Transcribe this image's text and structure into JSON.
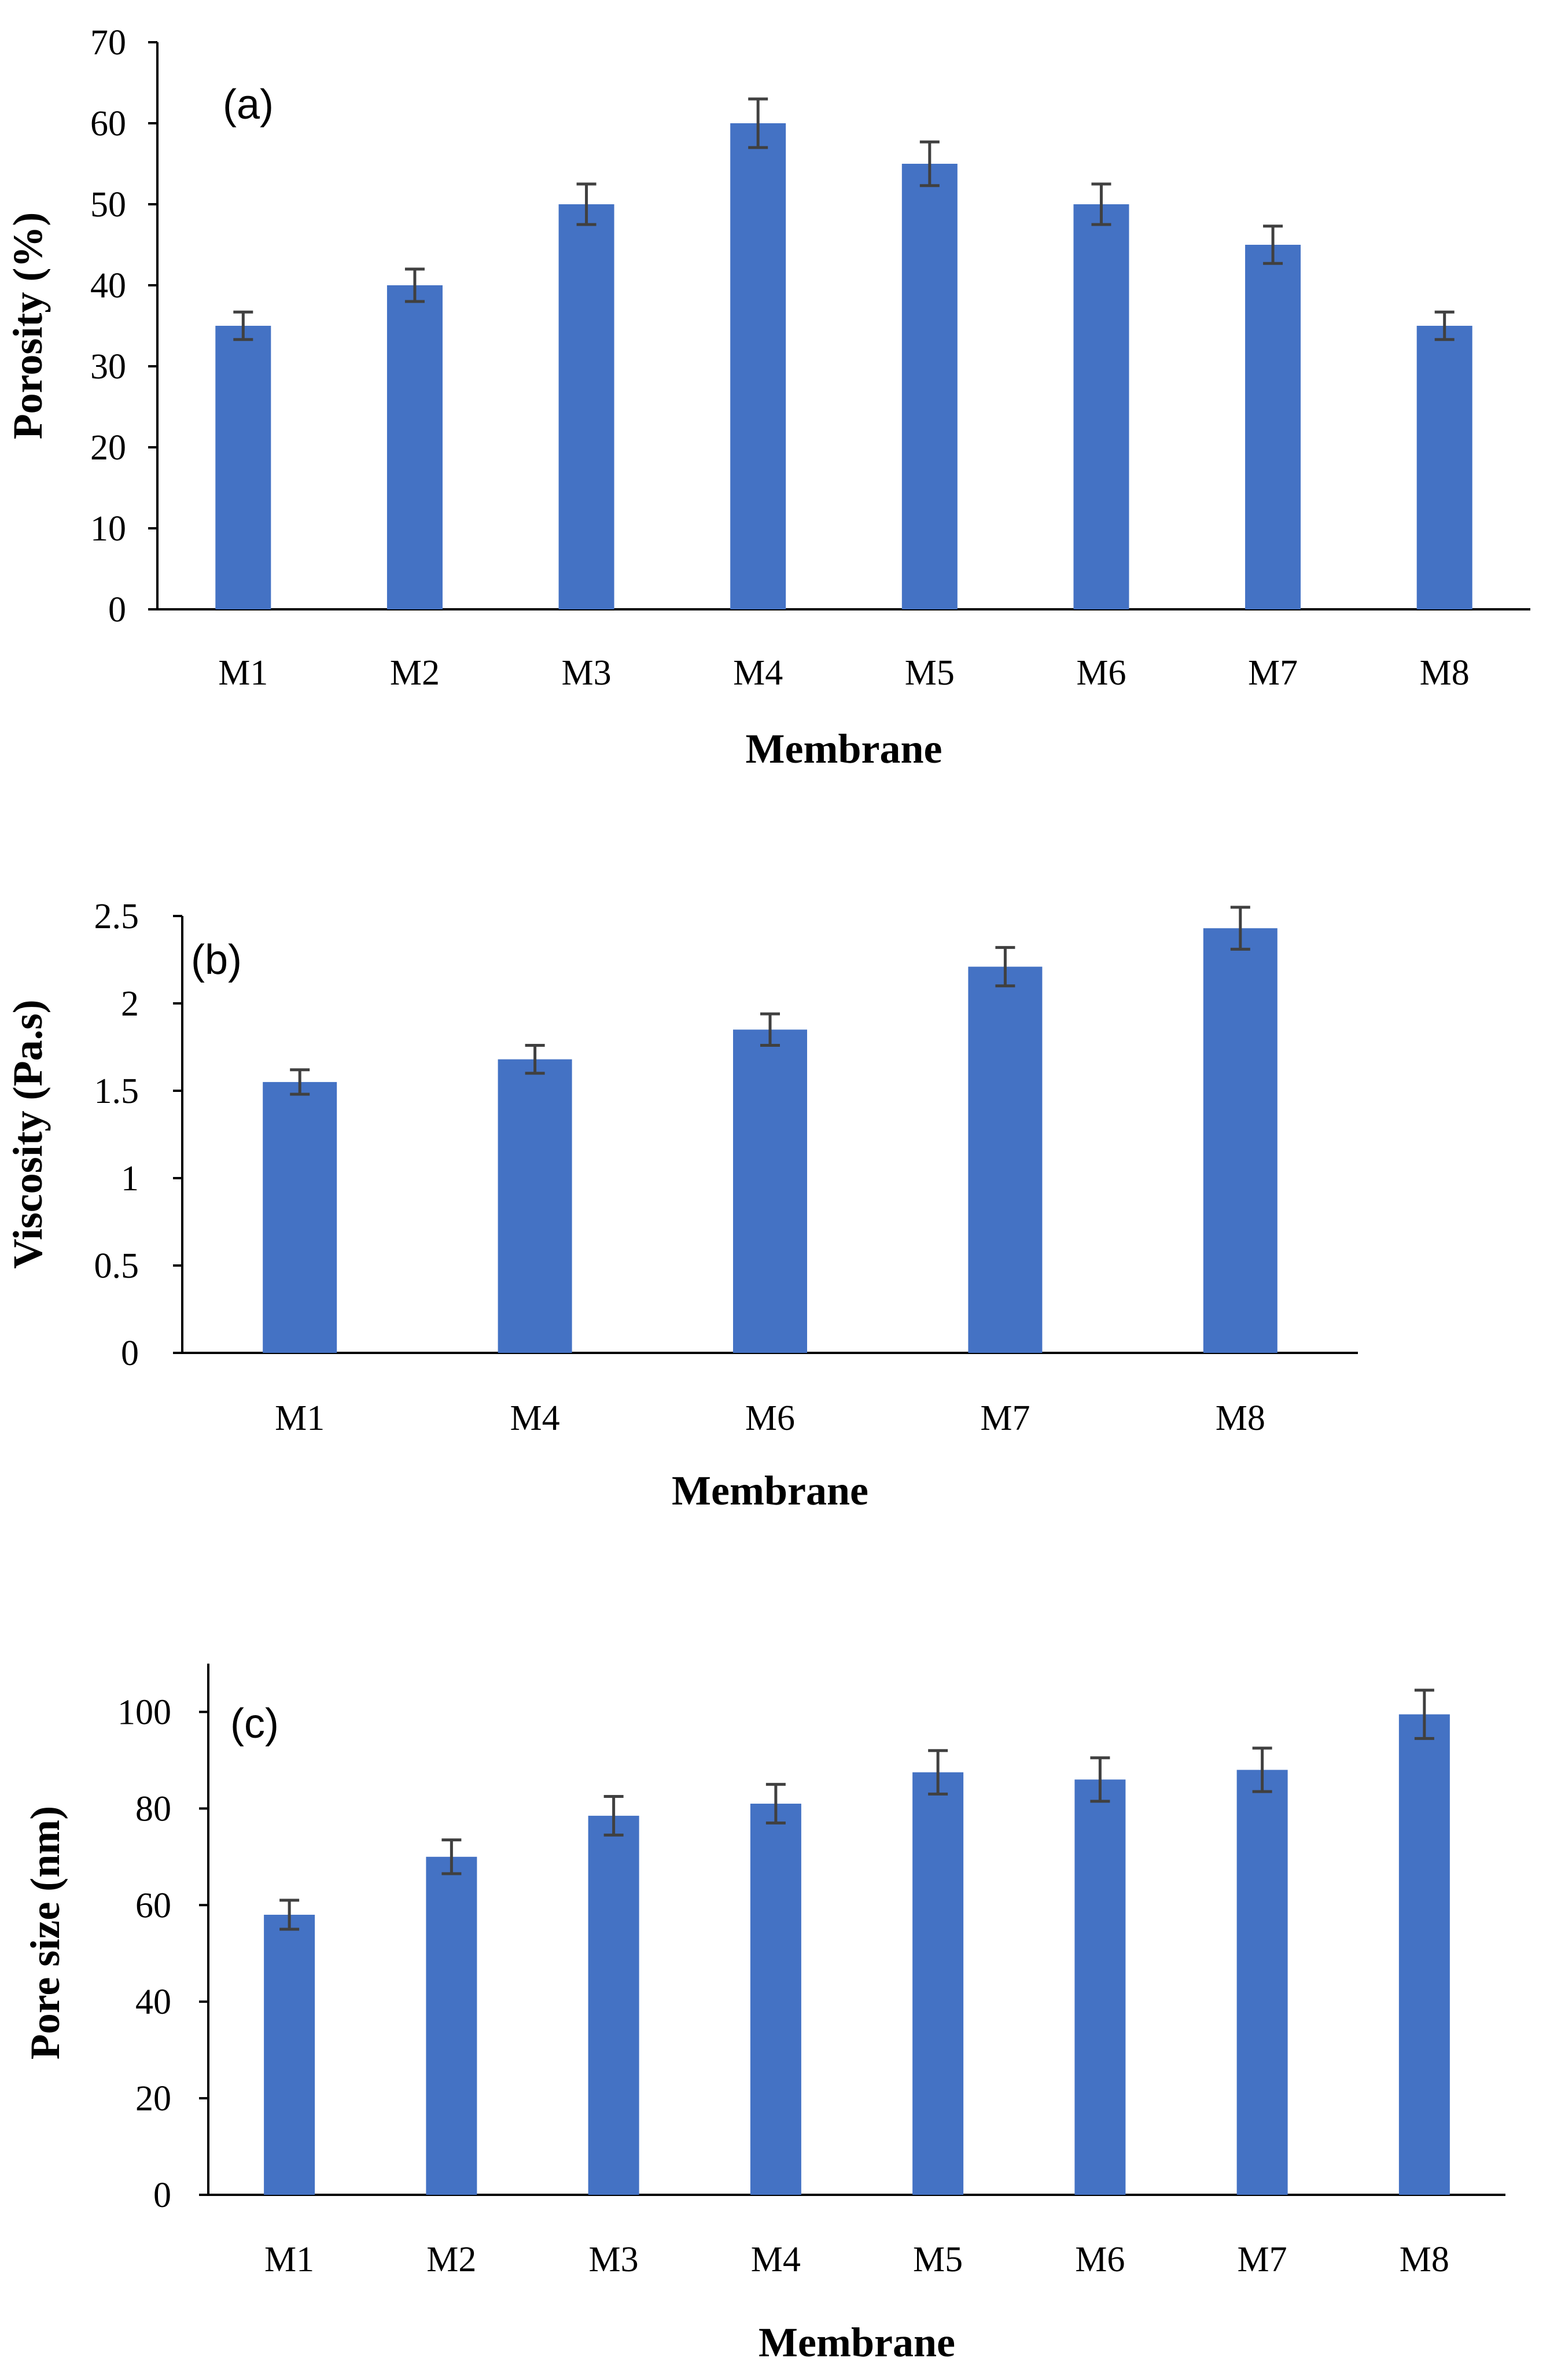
{
  "colors": {
    "bar": "#4472C4",
    "error": "#404040",
    "axis": "#000000"
  },
  "chart_data": [
    {
      "type": "bar",
      "panel_label": "(a)",
      "title": "",
      "xlabel": "Membrane",
      "ylabel": "Porosity (%)",
      "categories": [
        "M1",
        "M2",
        "M3",
        "M4",
        "M5",
        "M6",
        "M7",
        "M8"
      ],
      "values": [
        35,
        40,
        50,
        60,
        55,
        50,
        45,
        35
      ],
      "errors": [
        1.7,
        2.0,
        2.5,
        3.0,
        2.7,
        2.5,
        2.3,
        1.7
      ],
      "ylim": [
        0,
        70
      ],
      "yticks": [
        0,
        10,
        20,
        30,
        40,
        50,
        60,
        70
      ],
      "ytick_labels": [
        "0",
        "10",
        "20",
        "30",
        "40",
        "50",
        "60",
        "70"
      ],
      "grid": false,
      "legend": "none"
    },
    {
      "type": "bar",
      "panel_label": "(b)",
      "title": "",
      "xlabel": "Membrane",
      "ylabel": "Viscosity (Pa.s)",
      "categories": [
        "M1",
        "M4",
        "M6",
        "M7",
        "M8"
      ],
      "values": [
        1.55,
        1.68,
        1.85,
        2.21,
        2.43
      ],
      "errors": [
        0.07,
        0.08,
        0.09,
        0.11,
        0.12
      ],
      "ylim": [
        0,
        2.5
      ],
      "yticks": [
        0,
        0.5,
        1,
        1.5,
        2,
        2.5
      ],
      "ytick_labels": [
        "0",
        "0.5",
        "1",
        "1.5",
        "2",
        "2.5"
      ],
      "grid": false,
      "legend": "none"
    },
    {
      "type": "bar",
      "panel_label": "(c)",
      "title": "",
      "xlabel": "Membrane",
      "ylabel": "Pore size  (nm)",
      "categories": [
        "M1",
        "M2",
        "M3",
        "M4",
        "M5",
        "M6",
        "M7",
        "M8"
      ],
      "values": [
        58,
        70,
        78.5,
        81,
        87.5,
        86,
        88,
        99.5
      ],
      "errors": [
        3,
        3.5,
        4,
        4,
        4.5,
        4.5,
        4.5,
        5
      ],
      "ylim": [
        0,
        110
      ],
      "yticks": [
        0,
        20,
        40,
        60,
        80,
        100
      ],
      "ytick_labels": [
        "0",
        "20",
        "40",
        "60",
        "80",
        "100"
      ],
      "grid": false,
      "legend": "none"
    }
  ]
}
